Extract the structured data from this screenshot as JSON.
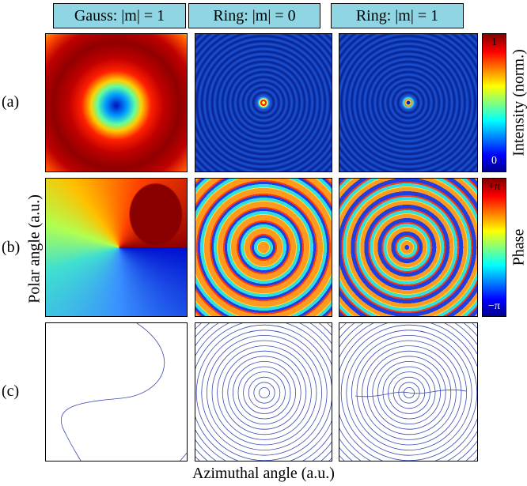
{
  "columns": [
    "Gauss: |m| = 1",
    "Ring: |m| = 0",
    "Ring: |m| = 1"
  ],
  "rows": [
    "(a)",
    "(b)",
    "(c)"
  ],
  "colorbars": {
    "intensity": {
      "label": "Intensity (norm.)",
      "max": "1",
      "min": "0"
    },
    "phase": {
      "label": "Phase",
      "max": "+π",
      "min": "−π"
    }
  },
  "axes": {
    "y_label": "Polar angle (a.u.)",
    "x_label": "Azimuthal angle (a.u.)"
  }
}
